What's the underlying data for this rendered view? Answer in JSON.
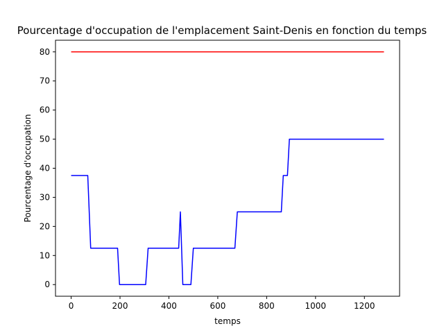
{
  "chart_data": {
    "type": "line",
    "title": "Pourcentage d'occupation de l'emplacement Saint-Denis en fonction du temps",
    "xlabel": "temps",
    "ylabel": "Pourcentage d'occupation",
    "xlim": [
      -64,
      1344
    ],
    "ylim": [
      -4,
      84
    ],
    "xticks": [
      0,
      200,
      400,
      600,
      800,
      1000,
      1200
    ],
    "yticks": [
      0,
      10,
      20,
      30,
      40,
      50,
      60,
      70,
      80
    ],
    "grid": false,
    "series": [
      {
        "color": "#ff0000",
        "x": [
          0,
          1280
        ],
        "y": [
          80,
          80
        ]
      },
      {
        "color": "#0000ff",
        "x": [
          0,
          68,
          80,
          190,
          198,
          305,
          315,
          440,
          447,
          457,
          463,
          490,
          500,
          670,
          680,
          860,
          868,
          885,
          893,
          1280
        ],
        "y": [
          37.5,
          37.5,
          12.5,
          12.5,
          0,
          0,
          12.5,
          12.5,
          25,
          0,
          0,
          0,
          12.5,
          12.5,
          25,
          25,
          37.5,
          37.5,
          50,
          50
        ]
      }
    ]
  }
}
